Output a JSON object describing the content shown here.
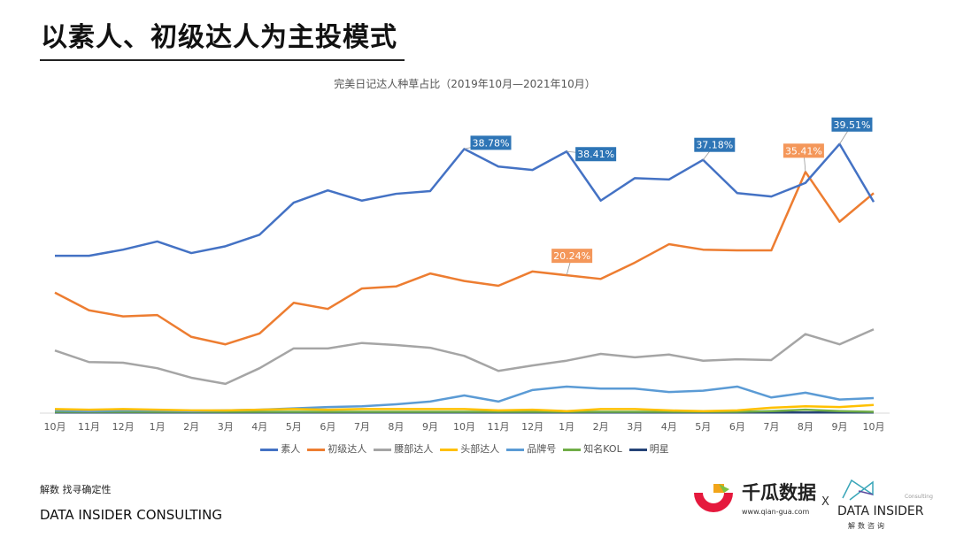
{
  "slide": {
    "title": "以素人、初级达人为主投模式",
    "slogan": "解数 找寻确定性",
    "company": "DATA INSIDER CONSULTING"
  },
  "logos": {
    "qiangua_name": "千瓜数据",
    "qiangua_url": "www.qian-gua.com",
    "separator": "X",
    "datainsider_name": "DATA INSIDER",
    "datainsider_cn": "解数咨询",
    "datainsider_tag": "Consulting"
  },
  "chart_data": {
    "type": "line",
    "title": "完美日记达人种草占比（2019年10月—2021年10月）",
    "categories": [
      "10月",
      "11月",
      "12月",
      "1月",
      "2月",
      "3月",
      "4月",
      "5月",
      "6月",
      "7月",
      "8月",
      "9月",
      "10月",
      "11月",
      "12月",
      "1月",
      "2月",
      "3月",
      "4月",
      "5月",
      "6月",
      "7月",
      "8月",
      "9月",
      "10月"
    ],
    "unit": "%",
    "ylim": [
      0,
      42
    ],
    "grid": false,
    "legend": "bottom",
    "series": [
      {
        "name": "素人",
        "color": "#4472c4",
        "values": [
          23.1,
          23.1,
          24.0,
          25.2,
          23.5,
          24.5,
          26.2,
          30.9,
          32.7,
          31.2,
          32.2,
          32.6,
          38.78,
          36.2,
          35.7,
          38.41,
          31.2,
          34.5,
          34.3,
          37.18,
          32.3,
          31.8,
          33.8,
          39.51,
          31.0
        ],
        "labels": [
          {
            "index": 12,
            "text": "38.78%"
          },
          {
            "index": 15,
            "text": "38.41%"
          },
          {
            "index": 19,
            "text": "37.18%"
          },
          {
            "index": 23,
            "text": "39.51%"
          }
        ]
      },
      {
        "name": "初级达人",
        "color": "#ed7d31",
        "values": [
          17.7,
          15.1,
          14.2,
          14.4,
          11.2,
          10.1,
          11.7,
          16.2,
          15.3,
          18.3,
          18.6,
          20.5,
          19.4,
          18.7,
          20.8,
          20.24,
          19.7,
          22.1,
          24.8,
          24.0,
          23.9,
          23.9,
          35.41,
          28.1,
          32.3
        ],
        "labels": [
          {
            "index": 15,
            "text": "20.24%"
          },
          {
            "index": 22,
            "text": "35.41%"
          }
        ]
      },
      {
        "name": "腰部达人",
        "color": "#a5a5a5",
        "values": [
          9.2,
          7.5,
          7.4,
          6.6,
          5.2,
          4.3,
          6.6,
          9.5,
          9.5,
          10.3,
          10.0,
          9.6,
          8.4,
          6.2,
          7.0,
          7.7,
          8.7,
          8.2,
          8.6,
          7.7,
          7.9,
          7.8,
          11.6,
          10.1,
          12.3
        ]
      },
      {
        "name": "头部达人",
        "color": "#ffc000",
        "values": [
          0.6,
          0.5,
          0.6,
          0.5,
          0.4,
          0.4,
          0.5,
          0.6,
          0.5,
          0.6,
          0.6,
          0.6,
          0.6,
          0.4,
          0.5,
          0.3,
          0.6,
          0.6,
          0.4,
          0.3,
          0.4,
          0.8,
          1.0,
          0.9,
          1.2
        ]
      },
      {
        "name": "品牌号",
        "color": "#5b9bd5",
        "values": [
          0.4,
          0.3,
          0.4,
          0.4,
          0.3,
          0.4,
          0.5,
          0.7,
          0.9,
          1.0,
          1.3,
          1.7,
          2.6,
          1.7,
          3.4,
          3.9,
          3.6,
          3.6,
          3.1,
          3.3,
          3.9,
          2.3,
          3.0,
          2.0,
          2.2
        ]
      },
      {
        "name": "知名KOL",
        "color": "#70ad47",
        "values": [
          0.2,
          0.2,
          0.2,
          0.2,
          0.2,
          0.2,
          0.2,
          0.2,
          0.2,
          0.2,
          0.2,
          0.2,
          0.2,
          0.2,
          0.2,
          0.2,
          0.2,
          0.2,
          0.2,
          0.2,
          0.2,
          0.3,
          0.5,
          0.3,
          0.2
        ]
      },
      {
        "name": "明星",
        "color": "#264478",
        "values": [
          0.1,
          0.1,
          0.1,
          0.1,
          0.1,
          0.1,
          0.1,
          0.1,
          0.1,
          0.1,
          0.1,
          0.1,
          0.1,
          0.1,
          0.1,
          0.1,
          0.1,
          0.1,
          0.1,
          0.1,
          0.1,
          0.1,
          0.1,
          0.1,
          0.1
        ]
      }
    ]
  }
}
